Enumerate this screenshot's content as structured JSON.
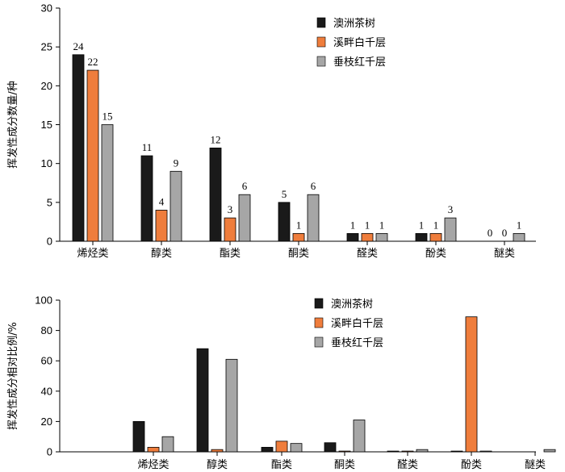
{
  "chart_data": [
    {
      "type": "bar",
      "categories": [
        "烯烃类",
        "醇类",
        "酯类",
        "酮类",
        "醛类",
        "酚类",
        "醚类"
      ],
      "series": [
        {
          "name": "澳洲茶树",
          "color": "#1a1a1a",
          "values": [
            24,
            11,
            12,
            5,
            1,
            1,
            0
          ]
        },
        {
          "name": "溪畔白千层",
          "color": "#ef7d3c",
          "values": [
            22,
            4,
            3,
            1,
            1,
            1,
            0
          ]
        },
        {
          "name": "垂枝红千层",
          "color": "#a6a6a6",
          "values": [
            15,
            9,
            6,
            6,
            1,
            3,
            1
          ]
        }
      ],
      "ylabel": "挥发性成分数量/种",
      "ylim": [
        0,
        30
      ],
      "yticks": [
        0,
        5,
        10,
        15,
        20,
        25,
        30
      ],
      "data_labels": true,
      "legend": "top-right"
    },
    {
      "type": "bar",
      "categories": [
        "烯烃类",
        "醇类",
        "酯类",
        "酮类",
        "醛类",
        "酚类",
        "醚类"
      ],
      "series": [
        {
          "name": "澳洲茶树",
          "color": "#1a1a1a",
          "values": [
            20,
            68,
            3,
            6,
            0.5,
            0.5,
            0
          ]
        },
        {
          "name": "溪畔白千层",
          "color": "#ef7d3c",
          "values": [
            3,
            1.5,
            7,
            0.5,
            0.5,
            89,
            0
          ]
        },
        {
          "name": "垂枝红千层",
          "color": "#a6a6a6",
          "values": [
            10,
            61,
            5.5,
            21,
            1.5,
            0.5,
            1.5
          ]
        }
      ],
      "ylabel": "挥发性成分相对比例/%",
      "ylim": [
        0,
        100
      ],
      "yticks": [
        0,
        20,
        40,
        60,
        80,
        100
      ],
      "data_labels": false,
      "legend": "top-right"
    }
  ]
}
